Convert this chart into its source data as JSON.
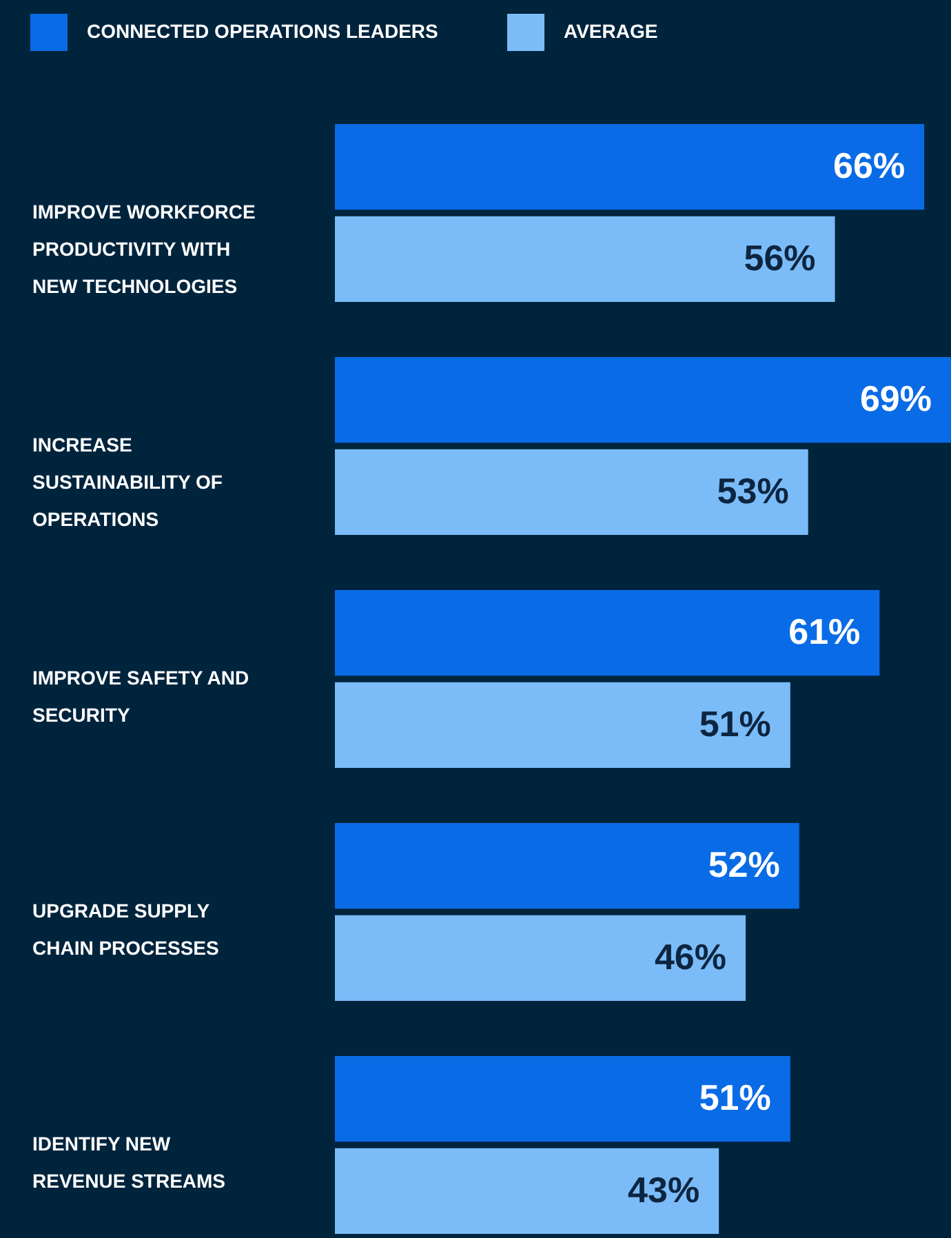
{
  "chart_data": {
    "type": "bar",
    "orientation": "horizontal",
    "legend": "top left",
    "data_labels": true,
    "categories": [
      "IMPROVE WORKFORCE PRODUCTIVITY WITH NEW TECHNOLOGIES",
      "INCREASE SUSTAINABILITY OF OPERATIONS",
      "IMPROVE SAFETY AND SECURITY",
      "UPGRADE SUPPLY CHAIN PROCESSES",
      "IDENTIFY NEW REVENUE STREAMS"
    ],
    "series": [
      {
        "name": "CONNECTED OPERATIONS LEADERS",
        "color": "#0a6be6",
        "values": [
          66,
          69,
          61,
          52,
          51
        ],
        "value_labels": [
          "66%",
          "69%",
          "61%",
          "52%",
          "51%"
        ]
      },
      {
        "name": "AVERAGE",
        "color": "#7bbcf8",
        "values": [
          56,
          53,
          51,
          46,
          43
        ],
        "value_labels": [
          "56%",
          "53%",
          "51%",
          "46%",
          "43%"
        ]
      }
    ]
  }
}
